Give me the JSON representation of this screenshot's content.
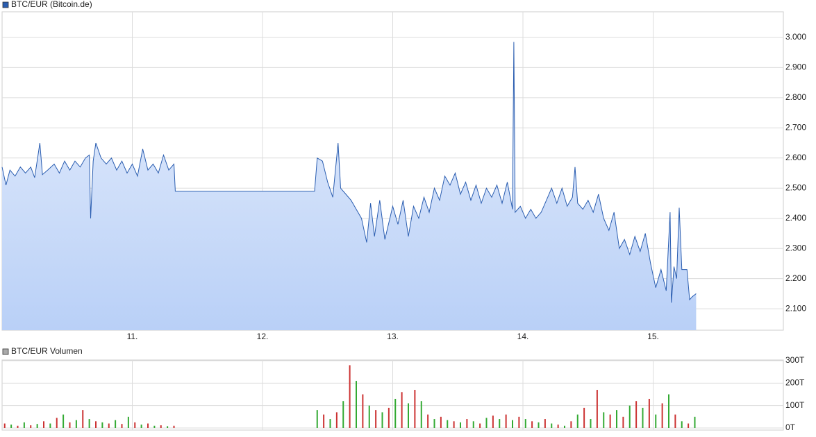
{
  "chart_data": [
    {
      "type": "area",
      "xlim": [
        10,
        16
      ],
      "xticks": [
        {
          "value": 11,
          "label": "11."
        },
        {
          "value": 12,
          "label": "12."
        },
        {
          "value": 13,
          "label": "13."
        },
        {
          "value": 14,
          "label": "14."
        },
        {
          "value": 15,
          "label": "15."
        }
      ],
      "ylim": [
        2029,
        3085
      ],
      "yticks": [
        {
          "value": 2100,
          "label": "2.100"
        },
        {
          "value": 2200,
          "label": "2.200"
        },
        {
          "value": 2300,
          "label": "2.300"
        },
        {
          "value": 2400,
          "label": "2.400"
        },
        {
          "value": 2500,
          "label": "2.500"
        },
        {
          "value": 2600,
          "label": "2.600"
        },
        {
          "value": 2700,
          "label": "2.700"
        },
        {
          "value": 2800,
          "label": "2.800"
        },
        {
          "value": 2900,
          "label": "2.900"
        },
        {
          "value": 3000,
          "label": "3.000"
        }
      ],
      "grid": true,
      "x": [
        10.0,
        10.03,
        10.06,
        10.1,
        10.14,
        10.18,
        10.22,
        10.25,
        10.29,
        10.31,
        10.35,
        10.4,
        10.44,
        10.48,
        10.52,
        10.56,
        10.6,
        10.64,
        10.67,
        10.68,
        10.7,
        10.72,
        10.76,
        10.8,
        10.84,
        10.88,
        10.92,
        10.96,
        11.0,
        11.04,
        11.08,
        11.12,
        11.16,
        11.2,
        11.24,
        11.28,
        11.32,
        11.33,
        12.4,
        12.42,
        12.46,
        12.5,
        12.54,
        12.58,
        12.6,
        12.64,
        12.68,
        12.72,
        12.76,
        12.8,
        12.83,
        12.86,
        12.9,
        12.94,
        13.0,
        13.04,
        13.08,
        13.12,
        13.16,
        13.2,
        13.24,
        13.28,
        13.32,
        13.36,
        13.4,
        13.44,
        13.48,
        13.52,
        13.56,
        13.6,
        13.64,
        13.68,
        13.72,
        13.76,
        13.8,
        13.84,
        13.88,
        13.92,
        13.93,
        13.94,
        13.98,
        14.02,
        14.06,
        14.1,
        14.14,
        14.18,
        14.22,
        14.26,
        14.3,
        14.34,
        14.38,
        14.4,
        14.42,
        14.46,
        14.5,
        14.54,
        14.58,
        14.62,
        14.66,
        14.7,
        14.74,
        14.78,
        14.82,
        14.86,
        14.9,
        14.94,
        14.98,
        15.02,
        15.06,
        15.1,
        15.13,
        15.14,
        15.16,
        15.18,
        15.2,
        15.22,
        15.26,
        15.28,
        15.3,
        15.33
      ],
      "series": [
        {
          "name": "BTC/EUR (Bitcoin.de)",
          "color": "#2a5db0",
          "values": [
            2570,
            2510,
            2560,
            2540,
            2570,
            2550,
            2570,
            2535,
            2650,
            2545,
            2560,
            2580,
            2550,
            2590,
            2560,
            2590,
            2570,
            2600,
            2610,
            2400,
            2590,
            2650,
            2600,
            2580,
            2600,
            2560,
            2590,
            2550,
            2580,
            2540,
            2630,
            2560,
            2580,
            2550,
            2610,
            2560,
            2580,
            2490,
            2490,
            2600,
            2590,
            2520,
            2470,
            2650,
            2500,
            2480,
            2460,
            2430,
            2400,
            2320,
            2450,
            2340,
            2460,
            2330,
            2440,
            2380,
            2460,
            2340,
            2440,
            2400,
            2470,
            2420,
            2500,
            2460,
            2540,
            2510,
            2550,
            2480,
            2520,
            2460,
            2510,
            2450,
            2500,
            2470,
            2510,
            2450,
            2520,
            2430,
            2985,
            2420,
            2440,
            2400,
            2430,
            2400,
            2420,
            2460,
            2500,
            2450,
            2500,
            2440,
            2470,
            2570,
            2450,
            2430,
            2460,
            2420,
            2480,
            2400,
            2360,
            2420,
            2300,
            2330,
            2280,
            2340,
            2290,
            2350,
            2250,
            2170,
            2230,
            2160,
            2420,
            2120,
            2240,
            2200,
            2435,
            2230,
            2230,
            2130,
            2140,
            2150
          ]
        }
      ]
    },
    {
      "type": "bar",
      "xlim": [
        10,
        16
      ],
      "ylim": [
        0,
        300
      ],
      "yticks": [
        {
          "value": 0,
          "label": "0T"
        },
        {
          "value": 100,
          "label": "100T"
        },
        {
          "value": 200,
          "label": "200T"
        },
        {
          "value": 300,
          "label": "300T"
        }
      ],
      "grid": true,
      "colors": [
        "#cc3333",
        "#33aa33"
      ],
      "x": [
        10.02,
        10.07,
        10.12,
        10.17,
        10.22,
        10.27,
        10.32,
        10.37,
        10.42,
        10.47,
        10.52,
        10.57,
        10.62,
        10.67,
        10.72,
        10.77,
        10.82,
        10.87,
        10.92,
        10.97,
        11.02,
        11.07,
        11.12,
        11.17,
        11.22,
        11.27,
        11.32,
        12.42,
        12.47,
        12.52,
        12.57,
        12.62,
        12.67,
        12.72,
        12.77,
        12.82,
        12.87,
        12.92,
        12.97,
        13.02,
        13.07,
        13.12,
        13.17,
        13.22,
        13.27,
        13.32,
        13.37,
        13.42,
        13.47,
        13.52,
        13.57,
        13.62,
        13.67,
        13.72,
        13.77,
        13.82,
        13.87,
        13.92,
        13.97,
        14.02,
        14.07,
        14.12,
        14.17,
        14.22,
        14.27,
        14.32,
        14.37,
        14.42,
        14.47,
        14.52,
        14.57,
        14.62,
        14.67,
        14.72,
        14.77,
        14.82,
        14.87,
        14.92,
        14.97,
        15.02,
        15.07,
        15.12,
        15.17,
        15.22,
        15.27,
        15.32
      ],
      "series": [
        {
          "name": "BTC/EUR Volumen",
          "color": "#aaaaaa",
          "values": [
            20,
            15,
            10,
            25,
            12,
            18,
            30,
            20,
            45,
            60,
            25,
            35,
            80,
            40,
            30,
            25,
            20,
            35,
            18,
            50,
            25,
            15,
            20,
            10,
            12,
            8,
            10,
            80,
            60,
            40,
            70,
            120,
            280,
            210,
            150,
            100,
            80,
            70,
            90,
            130,
            160,
            110,
            170,
            120,
            60,
            40,
            50,
            35,
            30,
            25,
            40,
            30,
            20,
            45,
            55,
            40,
            60,
            35,
            50,
            40,
            30,
            25,
            40,
            20,
            15,
            10,
            30,
            60,
            90,
            40,
            170,
            70,
            60,
            80,
            50,
            100,
            120,
            90,
            130,
            60,
            110,
            150,
            60,
            30,
            20,
            50
          ]
        }
      ]
    }
  ]
}
